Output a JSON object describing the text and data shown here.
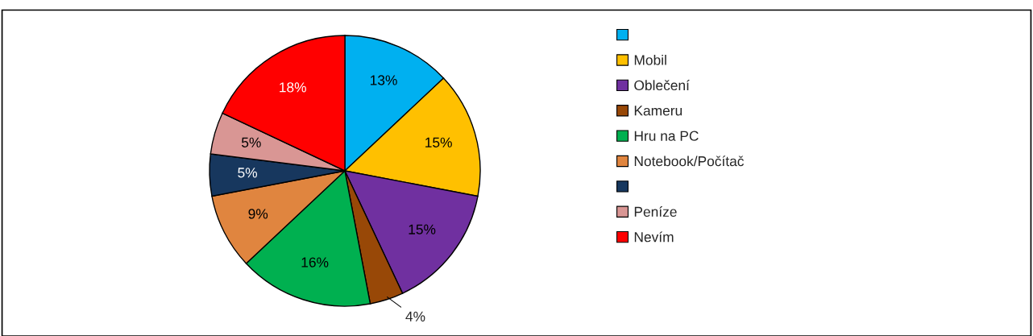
{
  "chart_data": {
    "type": "pie",
    "categories": [
      null,
      "Mobil",
      "Oblečení",
      "Kameru",
      "Hru na PC",
      "Notebook/Počítač",
      null,
      "Peníze",
      "Nevím"
    ],
    "values": [
      13,
      15,
      15,
      4,
      16,
      9,
      5,
      5,
      18
    ],
    "colors": [
      "#00b0f0",
      "#ffc000",
      "#7030a0",
      "#984807",
      "#00b050",
      "#e0853f",
      "#17375e",
      "#d99694",
      "#ff0000"
    ],
    "value_labels": [
      "13%",
      "15%",
      "15%",
      "4%",
      "16%",
      "9%",
      "5%",
      "5%",
      "18%"
    ],
    "legend": "right"
  }
}
